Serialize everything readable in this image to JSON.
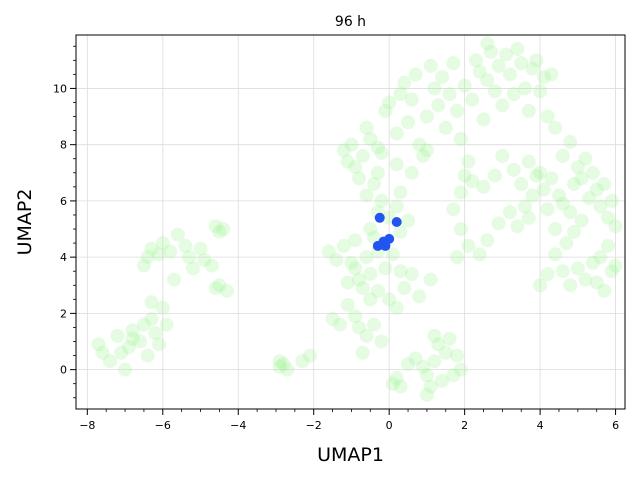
{
  "chart_data": {
    "type": "scatter",
    "title": "96 h",
    "xlabel": "UMAP1",
    "ylabel": "UMAP2",
    "xlim": [
      -8.3,
      6.25
    ],
    "ylim": [
      -1.4,
      11.9
    ],
    "xticks": [
      -8,
      -6,
      -4,
      -2,
      0,
      2,
      4,
      6
    ],
    "xtick_labels": [
      "−8",
      "−6",
      "−4",
      "−2",
      "0",
      "2",
      "4",
      "6"
    ],
    "yticks": [
      0,
      2,
      4,
      6,
      8,
      10
    ],
    "ytick_labels": [
      "0",
      "2",
      "4",
      "6",
      "8",
      "10"
    ],
    "grid": true,
    "series": [
      {
        "color": "#99f58a",
        "opacity": 0.25,
        "points": [
          [
            -7.7,
            0.9
          ],
          [
            -7.6,
            0.6
          ],
          [
            -7.4,
            0.3
          ],
          [
            -7.2,
            1.2
          ],
          [
            -7.0,
            0.0
          ],
          [
            -6.9,
            0.8
          ],
          [
            -6.8,
            1.4
          ],
          [
            -6.6,
            1.0
          ],
          [
            -6.5,
            1.6
          ],
          [
            -6.4,
            0.5
          ],
          [
            -6.3,
            1.8
          ],
          [
            -6.2,
            1.3
          ],
          [
            -6.1,
            0.9
          ],
          [
            -6.0,
            2.2
          ],
          [
            -5.9,
            1.6
          ],
          [
            -6.3,
            2.4
          ],
          [
            -6.8,
            1.1
          ],
          [
            -7.1,
            0.6
          ],
          [
            -6.4,
            4.0
          ],
          [
            -6.3,
            4.3
          ],
          [
            -6.1,
            4.1
          ],
          [
            -6.0,
            4.5
          ],
          [
            -5.8,
            4.2
          ],
          [
            -5.6,
            4.8
          ],
          [
            -5.7,
            3.2
          ],
          [
            -5.4,
            4.4
          ],
          [
            -5.2,
            3.6
          ],
          [
            -5.0,
            4.3
          ],
          [
            -4.9,
            3.9
          ],
          [
            -4.7,
            3.7
          ],
          [
            -4.6,
            5.1
          ],
          [
            -4.5,
            4.9
          ],
          [
            -4.4,
            5.0
          ],
          [
            -4.5,
            3.0
          ],
          [
            -4.3,
            2.8
          ],
          [
            -4.6,
            2.9
          ],
          [
            -5.3,
            4.0
          ],
          [
            -6.5,
            3.7
          ],
          [
            -2.9,
            0.1
          ],
          [
            -2.8,
            0.2
          ],
          [
            -2.7,
            0.0
          ],
          [
            -2.3,
            0.3
          ],
          [
            -2.1,
            0.5
          ],
          [
            -2.9,
            0.3
          ],
          [
            -1.5,
            1.8
          ],
          [
            -1.3,
            1.6
          ],
          [
            -1.1,
            2.3
          ],
          [
            -0.9,
            1.9
          ],
          [
            -0.8,
            1.5
          ],
          [
            -0.6,
            1.2
          ],
          [
            -0.4,
            1.6
          ],
          [
            -0.2,
            1.0
          ],
          [
            -0.7,
            0.6
          ],
          [
            -0.5,
            2.5
          ],
          [
            -0.3,
            2.8
          ],
          [
            0.0,
            2.5
          ],
          [
            0.2,
            2.2
          ],
          [
            0.4,
            2.9
          ],
          [
            0.6,
            3.4
          ],
          [
            0.8,
            2.6
          ],
          [
            1.1,
            3.2
          ],
          [
            0.3,
            3.5
          ],
          [
            0.1,
            -0.5
          ],
          [
            0.2,
            -0.3
          ],
          [
            0.3,
            -0.6
          ],
          [
            0.5,
            0.2
          ],
          [
            0.7,
            0.4
          ],
          [
            0.9,
            0.1
          ],
          [
            1.0,
            -0.2
          ],
          [
            1.1,
            -0.6
          ],
          [
            1.2,
            0.3
          ],
          [
            1.3,
            0.9
          ],
          [
            1.4,
            -0.4
          ],
          [
            1.5,
            0.6
          ],
          [
            1.6,
            1.1
          ],
          [
            1.7,
            -0.2
          ],
          [
            1.8,
            0.5
          ],
          [
            1.9,
            0.0
          ],
          [
            1.0,
            -0.9
          ],
          [
            1.2,
            1.2
          ],
          [
            -1.6,
            4.2
          ],
          [
            -1.4,
            3.9
          ],
          [
            -1.2,
            4.4
          ],
          [
            -1.0,
            3.8
          ],
          [
            -0.9,
            4.6
          ],
          [
            -0.8,
            3.2
          ],
          [
            -0.6,
            4.0
          ],
          [
            -0.5,
            5.0
          ],
          [
            -0.4,
            4.7
          ],
          [
            -0.3,
            5.6
          ],
          [
            -0.2,
            6.0
          ],
          [
            0.0,
            5.4
          ],
          [
            0.2,
            5.8
          ],
          [
            0.3,
            6.3
          ],
          [
            0.5,
            5.3
          ],
          [
            -0.1,
            3.6
          ],
          [
            0.1,
            4.1
          ],
          [
            -0.7,
            2.9
          ],
          [
            -0.5,
            3.4
          ],
          [
            -1.1,
            3.1
          ],
          [
            -0.9,
            3.6
          ],
          [
            -0.3,
            4.2
          ],
          [
            0.3,
            4.9
          ],
          [
            -1.2,
            7.8
          ],
          [
            -1.1,
            7.4
          ],
          [
            -1.0,
            8.0
          ],
          [
            -0.9,
            7.2
          ],
          [
            -0.8,
            6.8
          ],
          [
            -0.7,
            7.6
          ],
          [
            -0.6,
            8.6
          ],
          [
            -0.5,
            8.2
          ],
          [
            -0.4,
            6.6
          ],
          [
            -0.3,
            7.0
          ],
          [
            -0.2,
            7.7
          ],
          [
            -0.1,
            9.2
          ],
          [
            0.0,
            9.5
          ],
          [
            0.2,
            8.4
          ],
          [
            0.3,
            9.8
          ],
          [
            0.4,
            10.2
          ],
          [
            0.5,
            8.8
          ],
          [
            0.6,
            9.6
          ],
          [
            0.7,
            10.5
          ],
          [
            0.8,
            8.0
          ],
          [
            0.9,
            7.6
          ],
          [
            1.0,
            9.0
          ],
          [
            1.1,
            10.8
          ],
          [
            1.2,
            10.0
          ],
          [
            1.3,
            9.4
          ],
          [
            1.4,
            10.4
          ],
          [
            1.5,
            8.6
          ],
          [
            1.6,
            9.8
          ],
          [
            1.7,
            10.9
          ],
          [
            1.8,
            9.2
          ],
          [
            1.9,
            8.2
          ],
          [
            2.0,
            10.1
          ],
          [
            2.1,
            7.4
          ],
          [
            2.2,
            9.6
          ],
          [
            2.3,
            11.0
          ],
          [
            2.4,
            10.6
          ],
          [
            2.5,
            8.9
          ],
          [
            2.6,
            10.3
          ],
          [
            2.7,
            11.3
          ],
          [
            2.8,
            9.9
          ],
          [
            2.9,
            10.8
          ],
          [
            3.0,
            9.4
          ],
          [
            3.1,
            11.2
          ],
          [
            3.2,
            10.5
          ],
          [
            3.3,
            9.8
          ],
          [
            3.4,
            11.4
          ],
          [
            3.5,
            10.9
          ],
          [
            3.6,
            10.0
          ],
          [
            3.7,
            9.2
          ],
          [
            3.8,
            10.7
          ],
          [
            3.9,
            11.0
          ],
          [
            4.0,
            9.9
          ],
          [
            4.1,
            10.4
          ],
          [
            4.2,
            9.0
          ],
          [
            4.3,
            10.5
          ],
          [
            4.4,
            8.6
          ],
          [
            2.6,
            11.6
          ],
          [
            1.0,
            7.8
          ],
          [
            0.6,
            7.0
          ],
          [
            0.2,
            7.3
          ],
          [
            -0.3,
            7.9
          ],
          [
            -0.6,
            6.2
          ],
          [
            2.2,
            6.7
          ],
          [
            2.5,
            6.5
          ],
          [
            2.8,
            6.9
          ],
          [
            3.0,
            7.6
          ],
          [
            3.3,
            7.1
          ],
          [
            3.5,
            6.6
          ],
          [
            3.7,
            7.4
          ],
          [
            3.9,
            6.9
          ],
          [
            4.0,
            7.0
          ],
          [
            4.1,
            6.4
          ],
          [
            3.8,
            6.2
          ],
          [
            3.6,
            5.8
          ],
          [
            3.4,
            5.1
          ],
          [
            3.7,
            5.4
          ],
          [
            4.2,
            5.7
          ],
          [
            4.4,
            5.0
          ],
          [
            4.6,
            5.9
          ],
          [
            4.8,
            5.6
          ],
          [
            4.9,
            6.6
          ],
          [
            5.0,
            7.2
          ],
          [
            5.1,
            6.8
          ],
          [
            5.2,
            7.5
          ],
          [
            5.3,
            6.1
          ],
          [
            5.4,
            7.0
          ],
          [
            5.5,
            6.4
          ],
          [
            5.6,
            5.8
          ],
          [
            5.7,
            6.6
          ],
          [
            5.8,
            5.4
          ],
          [
            5.9,
            6.0
          ],
          [
            6.0,
            5.1
          ],
          [
            5.8,
            4.4
          ],
          [
            5.6,
            4.0
          ],
          [
            5.4,
            3.8
          ],
          [
            5.2,
            3.2
          ],
          [
            5.0,
            3.6
          ],
          [
            4.8,
            3.0
          ],
          [
            4.6,
            3.5
          ],
          [
            4.4,
            4.1
          ],
          [
            4.2,
            3.4
          ],
          [
            4.0,
            3.0
          ],
          [
            5.9,
            3.5
          ],
          [
            6.0,
            3.7
          ],
          [
            5.7,
            2.8
          ],
          [
            5.5,
            3.1
          ],
          [
            4.7,
            4.5
          ],
          [
            4.9,
            4.9
          ],
          [
            5.1,
            5.3
          ],
          [
            4.5,
            6.2
          ],
          [
            4.3,
            6.8
          ],
          [
            4.6,
            7.6
          ],
          [
            4.8,
            8.1
          ],
          [
            2.0,
            6.9
          ],
          [
            1.9,
            6.3
          ],
          [
            1.7,
            5.7
          ],
          [
            1.9,
            5.0
          ],
          [
            2.1,
            4.4
          ],
          [
            2.4,
            4.1
          ],
          [
            1.8,
            4.0
          ],
          [
            2.6,
            4.6
          ],
          [
            2.9,
            5.2
          ],
          [
            3.2,
            5.6
          ]
        ]
      },
      {
        "color": "#2255f0",
        "opacity": 1.0,
        "points": [
          [
            -0.25,
            5.4
          ],
          [
            0.2,
            5.25
          ],
          [
            -0.3,
            4.4
          ],
          [
            -0.15,
            4.55
          ],
          [
            0.0,
            4.65
          ],
          [
            -0.1,
            4.4
          ]
        ]
      }
    ]
  }
}
